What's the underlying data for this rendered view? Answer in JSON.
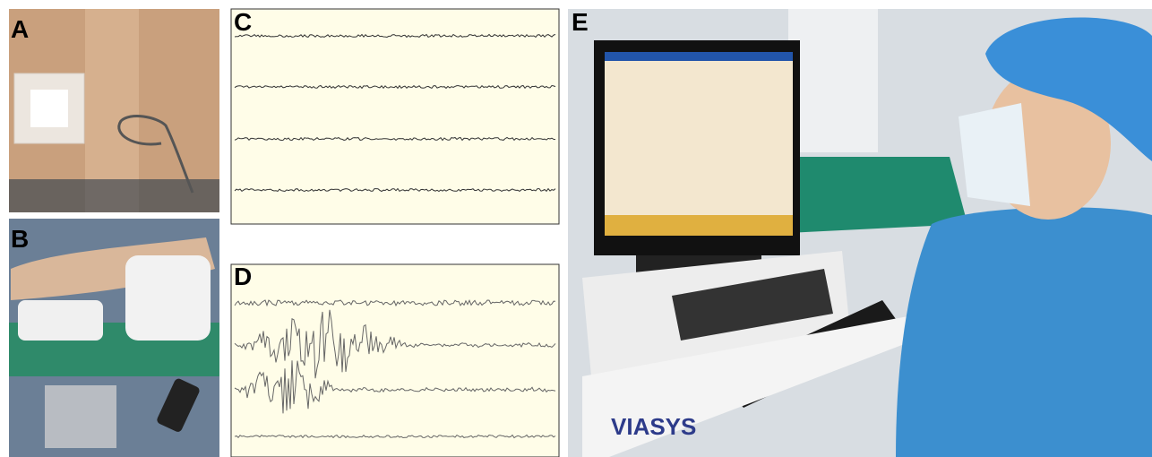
{
  "panels": [
    {
      "label": "A"
    },
    {
      "label": "B"
    },
    {
      "label": "C"
    },
    {
      "label": "D"
    },
    {
      "label": "E",
      "brand": "VIASYS"
    }
  ]
}
